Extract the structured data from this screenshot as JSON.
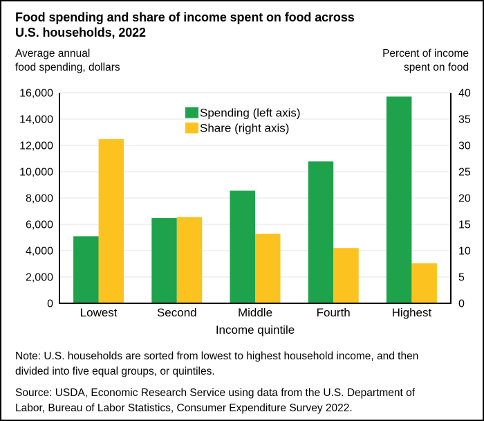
{
  "title": {
    "lines": [
      "Food spending and share of income spent on food across",
      "U.S. households, 2022"
    ]
  },
  "axis_captions": {
    "left": {
      "lines": [
        "Average annual",
        "food spending, dollars"
      ]
    },
    "right": {
      "lines": [
        "Percent of income",
        "spent on food"
      ]
    }
  },
  "legend": {
    "items": [
      {
        "label": "Spending (left axis)",
        "color": "#1ea24b",
        "swatch": "green-square"
      },
      {
        "label": "Share (right axis)",
        "color": "#fcc320",
        "swatch": "yellow-square"
      }
    ]
  },
  "note": {
    "lines": [
      "Note: U.S. households are sorted from lowest to highest household income, and then",
      "divided into five equal groups, or quintiles."
    ]
  },
  "source": {
    "lines": [
      "Source: USDA, Economic Research Service using data from the U.S. Department of",
      "Labor, Bureau of Labor Statistics, Consumer Expenditure Survey 2022."
    ]
  },
  "colors": {
    "spending_green": "#1ea24b",
    "share_yellow": "#fcc320",
    "grid": "#e3e3e3",
    "axis": "#000000",
    "text": "#000000",
    "background": "#ffffff",
    "border": "#000000"
  },
  "chart_data": {
    "type": "bar",
    "title": "Food spending and share of income spent on food across U.S. households, 2022",
    "categories": [
      "Lowest",
      "Second",
      "Middle",
      "Fourth",
      "Highest"
    ],
    "series": [
      {
        "name": "Spending (left axis)",
        "axis": "left",
        "color": "#1ea24b",
        "values": [
          5090,
          6473,
          8556,
          10780,
          15713
        ]
      },
      {
        "name": "Share (right axis)",
        "axis": "right",
        "color": "#fcc320",
        "values": [
          31.2,
          16.4,
          13.2,
          10.5,
          7.6
        ]
      }
    ],
    "xlabel": "Income quintile",
    "left_axis": {
      "label": "Average annual food spending, dollars",
      "lim": [
        0,
        16000
      ],
      "tick_values": [
        0,
        2000,
        4000,
        6000,
        8000,
        10000,
        12000,
        14000,
        16000
      ],
      "tick_labels": [
        "0",
        "2,000",
        "4,000",
        "6,000",
        "8,000",
        "10,000",
        "12,000",
        "14,000",
        "16,000"
      ]
    },
    "right_axis": {
      "label": "Percent of income spent on food",
      "lim": [
        0,
        40
      ],
      "tick_values": [
        0,
        5,
        10,
        15,
        20,
        25,
        30,
        35,
        40
      ],
      "tick_labels": [
        "0",
        "5",
        "10",
        "15",
        "20",
        "25",
        "30",
        "35",
        "40"
      ]
    },
    "grid": true,
    "legend_position": "inside-top-center"
  }
}
